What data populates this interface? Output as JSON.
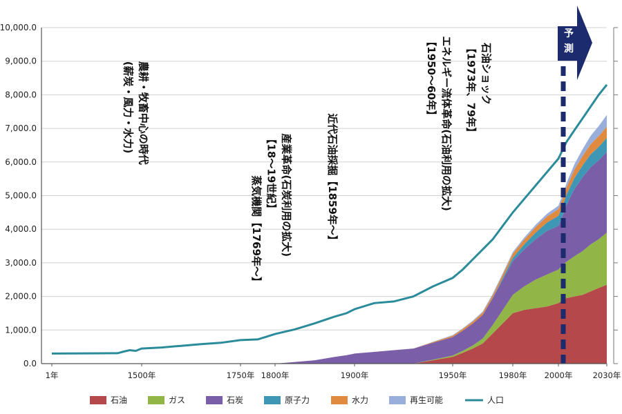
{
  "chart_data": {
    "type": "area",
    "title": "",
    "xlabel": "",
    "ylabel": "",
    "ylim": [
      0,
      10000
    ],
    "y_ticks": [
      "0.0",
      "1,000.0",
      "2,000.0",
      "3,000.0",
      "4,000.0",
      "5,000.0",
      "6,000.0",
      "7,000.0",
      "8,000.0",
      "9,000.0",
      "10,000.0"
    ],
    "x_ticks": [
      {
        "year": 1,
        "label": "1年"
      },
      {
        "year": 1500,
        "label": "1500年"
      },
      {
        "year": 1750,
        "label": "1750年"
      },
      {
        "year": 1800,
        "label": "1800年"
      },
      {
        "year": 1900,
        "label": "1900年"
      },
      {
        "year": 1950,
        "label": "1950年"
      },
      {
        "year": 1980,
        "label": "1980年"
      },
      {
        "year": 2000,
        "label": "2000年"
      },
      {
        "year": 2030,
        "label": "2030年"
      }
    ],
    "x": [
      "1",
      "1100",
      "1200",
      "1300",
      "1400",
      "1500",
      "1550",
      "1600",
      "1650",
      "1700",
      "1750",
      "1775",
      "1800",
      "1825",
      "1850",
      "1875",
      "1890",
      "1900",
      "1910",
      "1920",
      "1930",
      "1940",
      "1950",
      "1955",
      "1960",
      "1965",
      "1970",
      "1975",
      "1980",
      "1985",
      "1990",
      "1995",
      "2000",
      "2003",
      "2005",
      "2010",
      "2015",
      "2020",
      "2025",
      "2030"
    ],
    "series": [
      {
        "name": "石油",
        "color": "#b5484a",
        "values": [
          0,
          0,
          0,
          0,
          0,
          0,
          0,
          0,
          0,
          0,
          0,
          0,
          0,
          0,
          0,
          0,
          0,
          0,
          0,
          0,
          0,
          100,
          200,
          320,
          450,
          600,
          900,
          1200,
          1500,
          1600,
          1650,
          1700,
          1800,
          1900,
          1950,
          2000,
          2050,
          2150,
          2250,
          2350
        ]
      },
      {
        "name": "ガス",
        "color": "#92b547",
        "values": [
          0,
          0,
          0,
          0,
          0,
          0,
          0,
          0,
          0,
          0,
          0,
          0,
          0,
          0,
          0,
          0,
          0,
          0,
          0,
          0,
          0,
          20,
          40,
          60,
          90,
          150,
          250,
          400,
          550,
          700,
          850,
          950,
          1000,
          1050,
          1080,
          1200,
          1300,
          1400,
          1450,
          1550
        ]
      },
      {
        "name": "石炭",
        "color": "#7a5ea8",
        "values": [
          0,
          0,
          0,
          0,
          0,
          0,
          0,
          0,
          0,
          0,
          0,
          0,
          0,
          50,
          100,
          200,
          250,
          300,
          350,
          400,
          450,
          500,
          550,
          600,
          650,
          700,
          800,
          900,
          1000,
          1100,
          1200,
          1300,
          1300,
          1500,
          1700,
          2000,
          2200,
          2300,
          2350,
          2400
        ]
      },
      {
        "name": "原子力",
        "color": "#3f97b6",
        "values": [
          0,
          0,
          0,
          0,
          0,
          0,
          0,
          0,
          0,
          0,
          0,
          0,
          0,
          0,
          0,
          0,
          0,
          0,
          0,
          0,
          0,
          0,
          0,
          0,
          0,
          0,
          10,
          50,
          100,
          150,
          200,
          250,
          300,
          300,
          300,
          330,
          350,
          380,
          400,
          420
        ]
      },
      {
        "name": "水力",
        "color": "#e08a3f",
        "values": [
          0,
          0,
          0,
          0,
          0,
          0,
          0,
          0,
          0,
          0,
          0,
          0,
          0,
          0,
          0,
          0,
          0,
          0,
          0,
          0,
          0,
          20,
          40,
          50,
          60,
          70,
          80,
          100,
          120,
          140,
          160,
          180,
          200,
          200,
          210,
          250,
          280,
          300,
          320,
          330
        ]
      },
      {
        "name": "再生可能",
        "color": "#9aaedb",
        "values": [
          0,
          0,
          0,
          0,
          0,
          0,
          0,
          0,
          0,
          0,
          0,
          0,
          0,
          0,
          0,
          0,
          0,
          0,
          0,
          0,
          0,
          10,
          20,
          20,
          30,
          30,
          40,
          40,
          50,
          60,
          70,
          80,
          100,
          120,
          130,
          160,
          200,
          250,
          300,
          350
        ]
      },
      {
        "name": "人口",
        "color": "#2a8b9a",
        "type": "line",
        "values": [
          300,
          310,
          360,
          400,
          380,
          450,
          480,
          530,
          580,
          620,
          700,
          720,
          880,
          1020,
          1200,
          1400,
          1500,
          1620,
          1800,
          1850,
          2000,
          2300,
          2550,
          2800,
          3100,
          3400,
          3700,
          4100,
          4500,
          4900,
          5300,
          5700,
          6100,
          6400,
          6600,
          6950,
          7300,
          7650,
          8000,
          8300
        ]
      }
    ],
    "annotations": [
      {
        "lines": [
          "農耕・牧畜中心の時代",
          "(薪炭・風力・水力)"
        ],
        "year": 1470,
        "top": 9
      },
      {
        "lines": [
          "蒸気機関【1769年〜】"
        ],
        "year": 1768,
        "top": 5.6
      },
      {
        "lines": [
          "産業革命(石炭利用の拡大)",
          "【18〜19世紀】"
        ],
        "year": 1810,
        "top": 6.85
      },
      {
        "lines": [
          "近代石油採掘【1859年〜】"
        ],
        "year": 1868,
        "top": 7.45
      },
      {
        "lines": [
          "エネルギー流体革命(石油利用の拡大)",
          "【1950〜60年】"
        ],
        "year": 1945,
        "top": 9.75
      },
      {
        "lines": [
          "石油ショック",
          "【1973年、79年】"
        ],
        "year": 1965,
        "top": 9.55
      }
    ],
    "forecast": {
      "label": "予測",
      "start_year": 2003
    },
    "legend_position": "bottom"
  }
}
